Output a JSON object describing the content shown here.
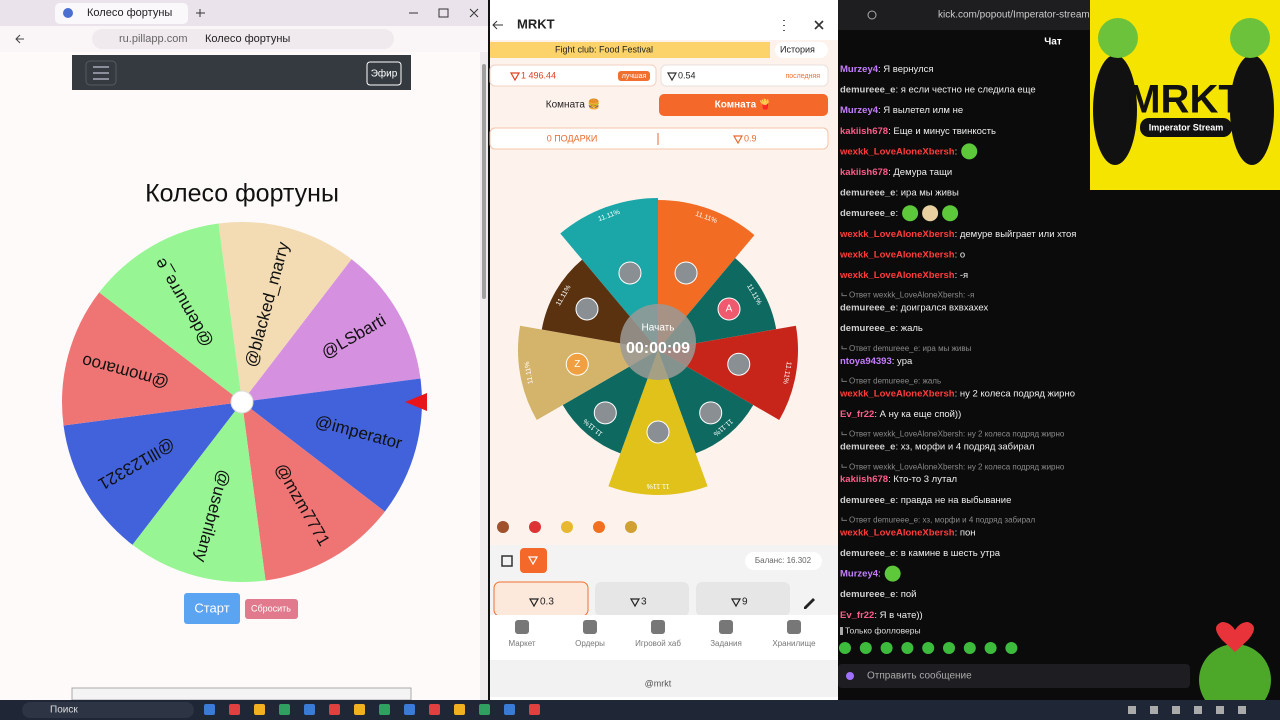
{
  "browser": {
    "tab_title": "Колесо фортуны",
    "url": "ru.pillapp.com",
    "page_title": "Колесо фортуны"
  },
  "wheel_page": {
    "nav_button": "Эфир",
    "title": "Колесо фортуны",
    "segments": [
      "@blacked_marry",
      "@LSbarti",
      "@imperator",
      "@mzm7771",
      "@usebrilany",
      "@lll123321",
      "@momaroo",
      "@demurre_e"
    ],
    "start_button": "Старт",
    "reset_button": "Сбросить"
  },
  "mrkt": {
    "title": "MRKT",
    "banner": "Fight club: Food Festival",
    "history": "История",
    "best": {
      "value": "1 496.44",
      "tag": "лучшая"
    },
    "last": {
      "value": "0.54",
      "tag": "последняя"
    },
    "room_left": "Комната 🍔",
    "room_right": "Комната 🍟",
    "gifts": "0 ПОДАРКИ",
    "pot": "0.9",
    "odds": [
      "11.11%",
      "11.11%",
      "11.11%",
      "11.11%",
      "11.11%",
      "11.11%",
      "11.11%",
      "11.11%",
      "11.11%"
    ],
    "avatar_letters": [
      "A",
      "Z"
    ],
    "start": "Начать",
    "timer": "00:00:09",
    "balance": "Баланс: 16.302",
    "bets": [
      "0.3",
      "3",
      "9"
    ],
    "nav": [
      "Маркет",
      "Ордеры",
      "Игровой хаб",
      "Задания",
      "Хранилище"
    ],
    "footer": "@mrkt"
  },
  "chat": {
    "url": "kick.com/popout/Imperator-stream",
    "header": "Чат",
    "messages": [
      {
        "user": "Murzey4",
        "color": "#c77dff",
        "text": ": Я вернулся"
      },
      {
        "user": "demureee_e",
        "color": "#d0d0d0",
        "text": ": я если честно не следила еще"
      },
      {
        "user": "Murzey4",
        "color": "#c77dff",
        "text": ": Я вылетел илм не"
      },
      {
        "user": "kakiish678",
        "color": "#ff5c8a",
        "text": ": Еще и минус твинкость"
      },
      {
        "user": "wexkk_LoveAloneXbersh",
        "color": "#ff3b3b",
        "text": ":",
        "emotes": 1
      },
      {
        "user": "kakiish678",
        "color": "#ff5c8a",
        "text": ": Демура тащи"
      },
      {
        "user": "demureee_e",
        "color": "#d0d0d0",
        "text": ": ира мы живы"
      },
      {
        "user": "demureee_e",
        "color": "#d0d0d0",
        "text": ":",
        "emotes": 3
      },
      {
        "user": "wexkk_LoveAloneXbersh",
        "color": "#ff3b3b",
        "text": ": демуре выйграет или хтоя"
      },
      {
        "user": "wexkk_LoveAloneXbersh",
        "color": "#ff3b3b",
        "text": ": о"
      },
      {
        "user": "wexkk_LoveAloneXbersh",
        "color": "#ff3b3b",
        "text": ": -я"
      },
      {
        "reply": "Ответ wexkk_LoveAloneXbersh: -я"
      },
      {
        "user": "demureee_e",
        "color": "#d0d0d0",
        "text": ": доигрался вхвхахех"
      },
      {
        "user": "demureee_e",
        "color": "#d0d0d0",
        "text": ": жаль"
      },
      {
        "reply": "Ответ demureee_e: ира мы живы"
      },
      {
        "user": "ntoya94393",
        "color": "#c77dff",
        "text": ": ура"
      },
      {
        "reply": "Ответ demureee_e: жаль"
      },
      {
        "user": "wexkk_LoveAloneXbersh",
        "color": "#ff3b3b",
        "text": ": ну 2 колеса подряд жирно"
      },
      {
        "user": "Ev_fr22",
        "color": "#ff5c8a",
        "text": ": А ну ка еще спой))"
      },
      {
        "reply": "Ответ wexkk_LoveAloneXbersh: ну 2 колеса подряд жирно"
      },
      {
        "user": "demureee_e",
        "color": "#d0d0d0",
        "text": ": хз, морфи и 4 подряд забирал"
      },
      {
        "reply": "Ответ wexkk_LoveAloneXbersh: ну 2 колеса подряд жирно"
      },
      {
        "user": "kakiish678",
        "color": "#ff5c8a",
        "text": ": Кто-то 3 лутал"
      },
      {
        "user": "demureee_e",
        "color": "#d0d0d0",
        "text": ": правда не на выбывание"
      },
      {
        "reply": "Ответ demureee_e: хз, морфи и 4 подряд забирал"
      },
      {
        "user": "wexkk_LoveAloneXbersh",
        "color": "#ff3b3b",
        "text": ": пон"
      },
      {
        "user": "demureee_e",
        "color": "#d0d0d0",
        "text": ": в камине в шесть утра"
      },
      {
        "user": "Murzey4",
        "color": "#c77dff",
        "text": ":",
        "emotes": 1
      },
      {
        "user": "demureee_e",
        "color": "#d0d0d0",
        "text": ": пой"
      },
      {
        "user": "Ev_fr22",
        "color": "#ff5c8a",
        "text": ": Я в чате))"
      }
    ],
    "followers_only": "Только фолловеры",
    "input_placeholder": "Отправить сообщение"
  },
  "logo": {
    "brand": "MRKT",
    "subtitle": "Imperator Stream"
  },
  "taskbar": {
    "search": "Поиск"
  }
}
